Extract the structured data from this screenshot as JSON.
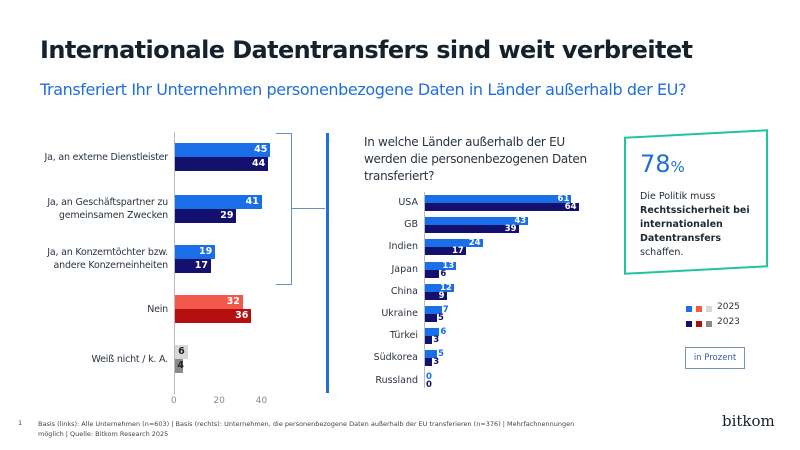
{
  "title": "Internationale Datentransfers sind weit verbreitet",
  "subtitle": "Transferiert Ihr Unternehmen personenbezogene Daten in Länder außerhalb der EU?",
  "chart_data": [
    {
      "type": "bar",
      "orientation": "horizontal",
      "categories": [
        "Ja, an externe Dienstleister",
        "Ja, an Geschäftspartner zu gemeinsamen Zwecken",
        "Ja, an Konzerntöchter bzw. andere Konzerneinheiten",
        "Nein",
        "Weiß nicht / k. A."
      ],
      "series": [
        {
          "name": "2025",
          "values": [
            45,
            41,
            19,
            32,
            6
          ]
        },
        {
          "name": "2023",
          "values": [
            44,
            29,
            17,
            36,
            4
          ]
        }
      ],
      "colors_2025": [
        "#1a6fe8",
        "#1a6fe8",
        "#1a6fe8",
        "#f2584a",
        "#d8d8d8"
      ],
      "colors_2023": [
        "#14106e",
        "#14106e",
        "#14106e",
        "#b3100f",
        "#8a8a8a"
      ],
      "xticks": [
        "0",
        "20",
        "40"
      ],
      "xlim": [
        0,
        50
      ]
    },
    {
      "type": "bar",
      "orientation": "horizontal",
      "title": "In welche Länder außerhalb der EU werden die personenbezogenen Daten transferiert?",
      "categories": [
        "USA",
        "GB",
        "Indien",
        "Japan",
        "China",
        "Ukraine",
        "Türkei",
        "Südkorea",
        "Russland"
      ],
      "series": [
        {
          "name": "2025",
          "values": [
            61,
            43,
            24,
            13,
            12,
            7,
            6,
            5,
            0
          ]
        },
        {
          "name": "2023",
          "values": [
            64,
            39,
            17,
            6,
            9,
            5,
            3,
            3,
            0
          ]
        }
      ],
      "colors": {
        "2025": "#1a6fe8",
        "2023": "#14106e"
      }
    }
  ],
  "callout": {
    "value": "78",
    "unit": "%",
    "line1": "Die Politik muss",
    "bold": "Rechtssicherheit bei internationalen Datentransfers",
    "line2": "schaffen."
  },
  "legend": [
    "2025",
    "2023"
  ],
  "unit_label": "in Prozent",
  "footnote_number": "1",
  "footnote": "Basis (links): Alle Unternehmen (n=603) | Basis (rechts): Unternehmen, die personenbezogene Daten außerhalb der EU transferieren (n=376) | Mehrfachnennungen möglich | Quelle: Bitkom Research 2025",
  "logo": "bitkom"
}
